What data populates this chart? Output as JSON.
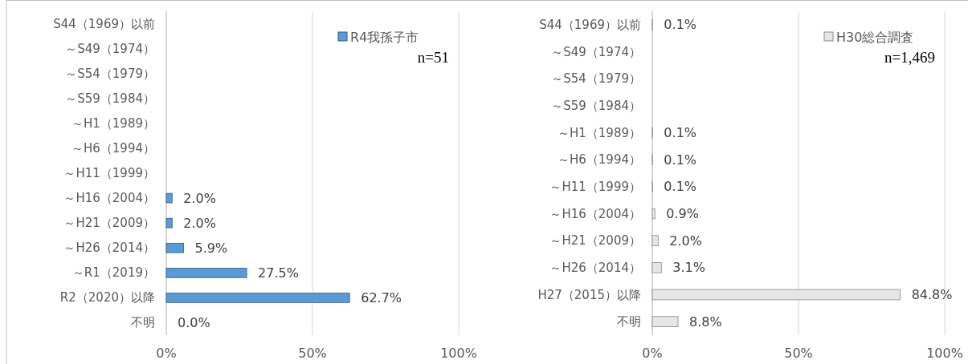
{
  "chart_data": [
    {
      "type": "bar",
      "orientation": "horizontal",
      "categories": [
        "S44（1969）以前",
        "～S49（1974）",
        "～S54（1979）",
        "～S59（1984）",
        "～H1（1989）",
        "～H6（1994）",
        "～H11（1999）",
        "～H16（2004）",
        "～H21（2009）",
        "～H26（2014）",
        "～R1（2019）",
        "R2（2020）以降",
        "不明"
      ],
      "series": [
        {
          "name": "R4我孫子市",
          "color": "#5b9bd5",
          "values": [
            null,
            null,
            null,
            null,
            null,
            null,
            null,
            2.0,
            2.0,
            5.9,
            27.5,
            62.7,
            0.0
          ],
          "value_labels": [
            null,
            null,
            null,
            null,
            null,
            null,
            null,
            "2.0%",
            "2.0%",
            "5.9%",
            "27.5%",
            "62.7%",
            "0.0%"
          ]
        }
      ],
      "xlim": [
        0,
        100
      ],
      "xticks": [
        {
          "value": 0,
          "label": "0%"
        },
        {
          "value": 50,
          "label": "50%"
        },
        {
          "value": 100,
          "label": "100%"
        }
      ],
      "grid": "x",
      "legend": "top right",
      "annotations": [
        "n=51"
      ]
    },
    {
      "type": "bar",
      "orientation": "horizontal",
      "categories": [
        "S44（1969）以前",
        "～S49（1974）",
        "～S54（1979）",
        "～S59（1984）",
        "～H1（1989）",
        "～H6（1994）",
        "～H11（1999）",
        "～H16（2004）",
        "～H21（2009）",
        "～H26（2014）",
        "H27（2015）以降",
        "不明"
      ],
      "series": [
        {
          "name": "H30総合調査",
          "color": "#e7e6e6",
          "values": [
            0.1,
            null,
            null,
            null,
            0.1,
            0.1,
            0.1,
            0.9,
            2.0,
            3.1,
            84.8,
            8.8
          ],
          "value_labels": [
            "0.1%",
            null,
            null,
            null,
            "0.1%",
            "0.1%",
            "0.1%",
            "0.9%",
            "2.0%",
            "3.1%",
            "84.8%",
            "8.8%"
          ]
        }
      ],
      "xlim": [
        0,
        100
      ],
      "xticks": [
        {
          "value": 0,
          "label": "0%"
        },
        {
          "value": 50,
          "label": "50%"
        },
        {
          "value": 100,
          "label": "100%"
        }
      ],
      "grid": "x",
      "legend": "top right",
      "annotations": [
        "n=1,469"
      ]
    }
  ]
}
